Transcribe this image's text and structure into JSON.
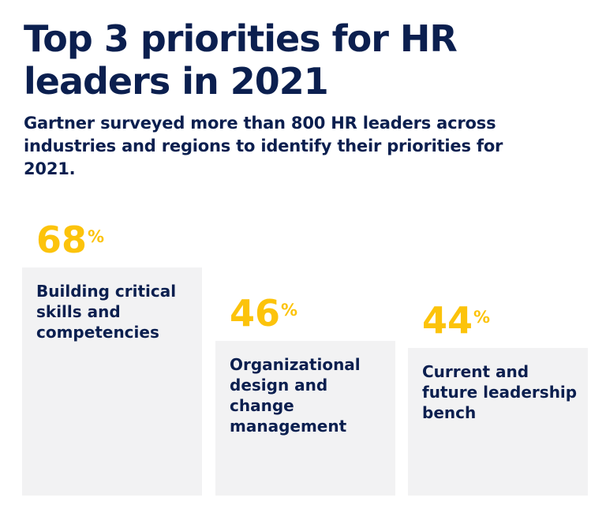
{
  "header": {
    "title": "Top 3 priorities for HR leaders in 2021",
    "subtitle": "Gartner surveyed more than 800 HR leaders across industries and regions to identify their priorities for 2021."
  },
  "colors": {
    "navy": "#0b1f4f",
    "accent_yellow": "#fcc30b",
    "bar_fill": "#f2f2f3"
  },
  "chart_data": {
    "type": "bar",
    "title": "Top 3 priorities for HR leaders in 2021",
    "categories": [
      "Building critical skills and competencies",
      "Organizational design and change management",
      "Current and future leadership bench"
    ],
    "values": [
      68,
      46,
      44
    ],
    "value_labels": [
      "68",
      "46",
      "44"
    ],
    "unit": "%",
    "ylim": [
      0,
      68
    ],
    "grid": false
  }
}
